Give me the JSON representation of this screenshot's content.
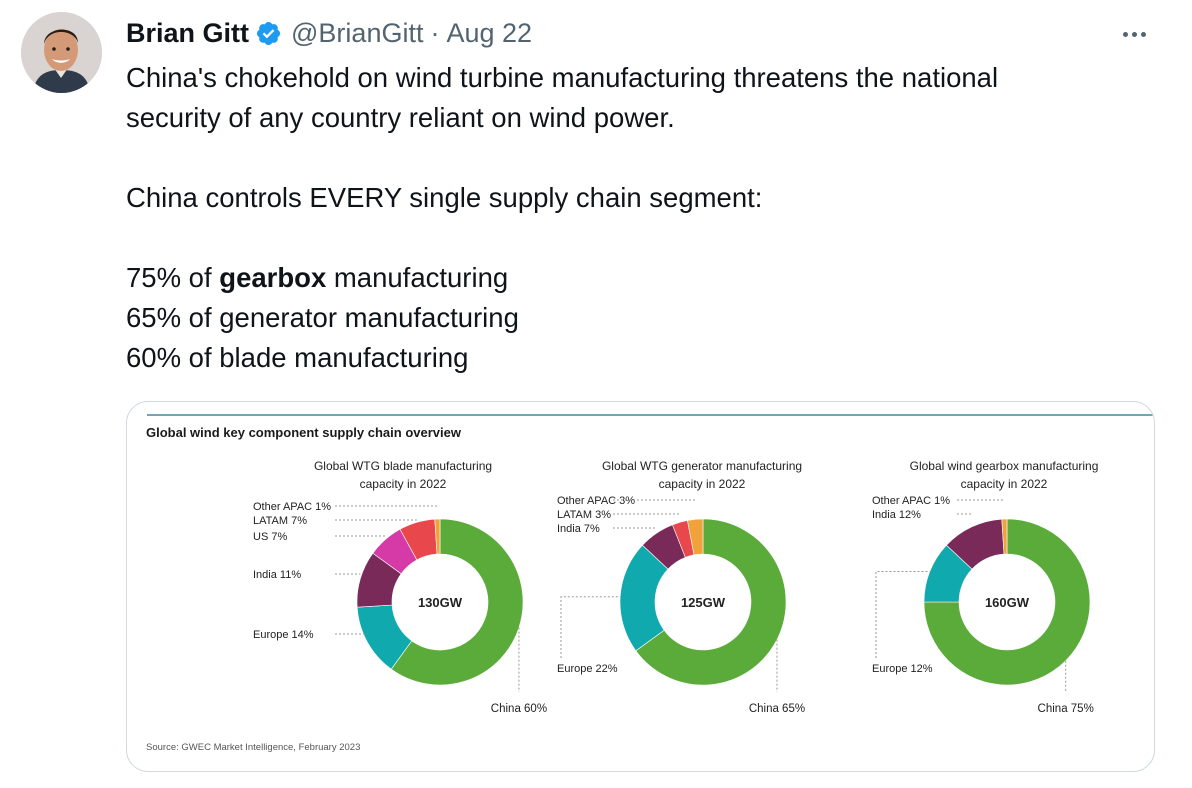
{
  "tweet": {
    "author_name": "Brian Gitt",
    "handle": "@BrianGitt",
    "separator": "·",
    "date": "Aug 22",
    "lines": [
      "China's chokehold on wind turbine manufacturing threatens the national",
      "security of any country reliant on wind power.",
      "China controls EVERY single supply chain segment:"
    ],
    "stat1_prefix": "75% of ",
    "stat1_bold": "gearbox",
    "stat1_suffix": " manufacturing",
    "stat2": "65% of generator manufacturing",
    "stat3": "60% of blade manufacturing"
  },
  "icons": {
    "verified": "verified-badge-icon",
    "more": "more-options-icon"
  },
  "colors": {
    "china": "#5aab3a",
    "europe": "#10a9ad",
    "india": "#7a2a58",
    "us": "#d63aa6",
    "latam": "#e8484b",
    "other_apac": "#f2a23b",
    "header_rule": "#1c6f8c"
  },
  "figure": {
    "title": "Global wind key component supply chain overview",
    "source": "Source: GWEC Market Intelligence, February 2023"
  },
  "chart_data": [
    {
      "type": "pie",
      "title": "Global WTG blade manufacturing capacity in 2022",
      "center_label": "130GW",
      "slices": [
        {
          "label": "China",
          "value": 60,
          "display": "China 60%",
          "color": "#5aab3a"
        },
        {
          "label": "Europe",
          "value": 14,
          "display": "Europe 14%",
          "color": "#10a9ad"
        },
        {
          "label": "India",
          "value": 11,
          "display": "India 11%",
          "color": "#7a2a58"
        },
        {
          "label": "US",
          "value": 7,
          "display": "US 7%",
          "color": "#d63aa6"
        },
        {
          "label": "LATAM",
          "value": 7,
          "display": "LATAM 7%",
          "color": "#e8484b"
        },
        {
          "label": "Other APAC",
          "value": 1,
          "display": "Other APAC 1%",
          "color": "#f2a23b"
        }
      ]
    },
    {
      "type": "pie",
      "title": "Global WTG generator manufacturing capacity in 2022",
      "center_label": "125GW",
      "slices": [
        {
          "label": "China",
          "value": 65,
          "display": "China 65%",
          "color": "#5aab3a"
        },
        {
          "label": "Europe",
          "value": 22,
          "display": "Europe 22%",
          "color": "#10a9ad"
        },
        {
          "label": "India",
          "value": 7,
          "display": "India 7%",
          "color": "#7a2a58"
        },
        {
          "label": "LATAM",
          "value": 3,
          "display": "LATAM 3%",
          "color": "#e8484b"
        },
        {
          "label": "Other APAC",
          "value": 3,
          "display": "Other APAC 3%",
          "color": "#f2a23b"
        }
      ]
    },
    {
      "type": "pie",
      "title": "Global wind gearbox manufacturing capacity in 2022",
      "center_label": "160GW",
      "slices": [
        {
          "label": "China",
          "value": 75,
          "display": "China 75%",
          "color": "#5aab3a"
        },
        {
          "label": "Europe",
          "value": 12,
          "display": "Europe 12%",
          "color": "#10a9ad"
        },
        {
          "label": "India",
          "value": 12,
          "display": "India 12%",
          "color": "#7a2a58"
        },
        {
          "label": "Other APAC",
          "value": 1,
          "display": "Other APAC 1%",
          "color": "#f2a23b"
        }
      ]
    }
  ]
}
